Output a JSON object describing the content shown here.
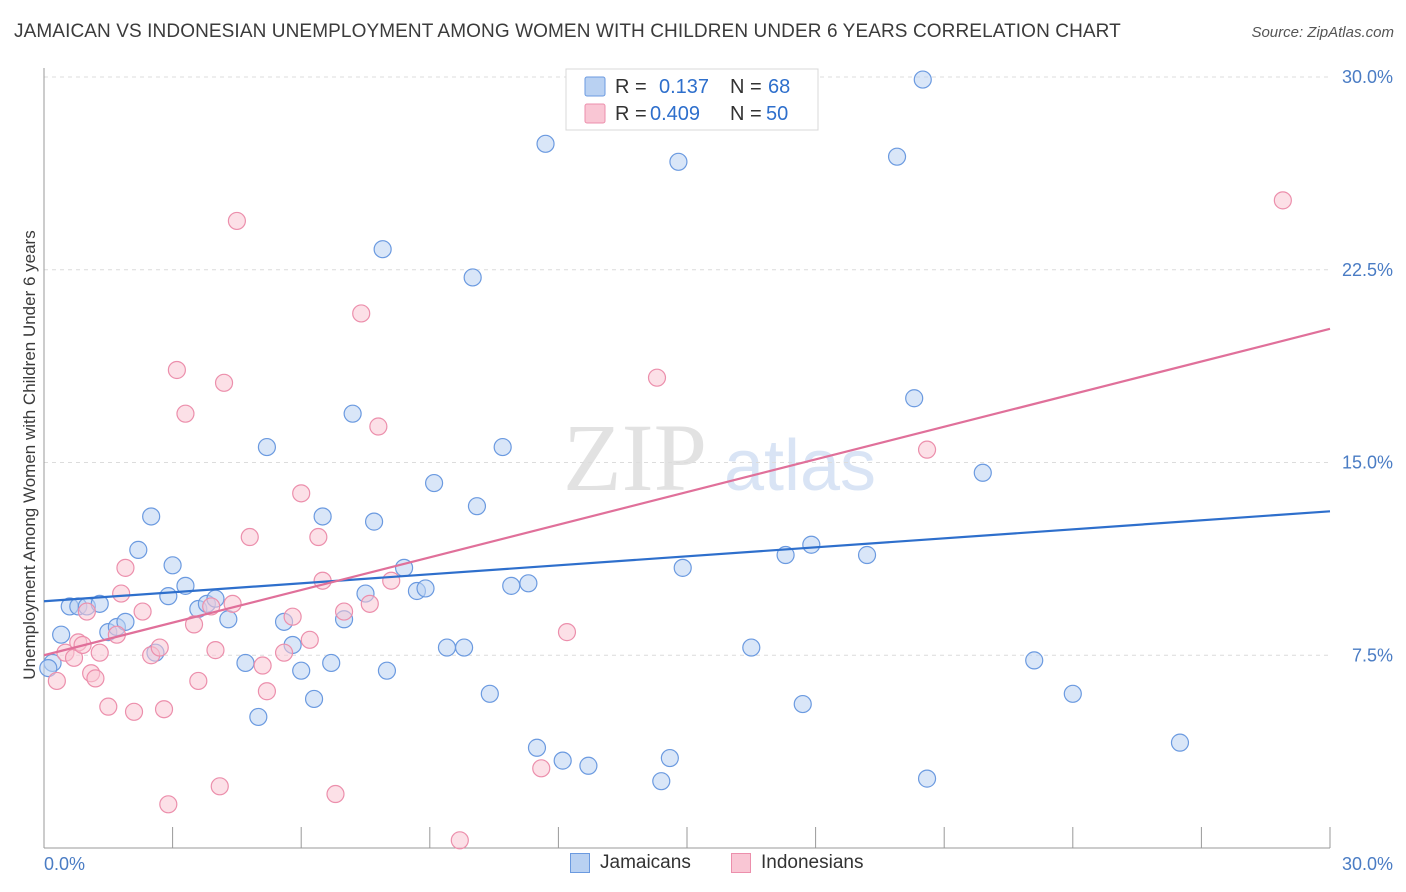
{
  "title": "JAMAICAN VS INDONESIAN UNEMPLOYMENT AMONG WOMEN WITH CHILDREN UNDER 6 YEARS CORRELATION CHART",
  "source": "Source: ZipAtlas.com",
  "watermark": {
    "zip": "ZIP",
    "atlas": "atlas"
  },
  "colors": {
    "jamaicans_fill": "#b9d1f2",
    "jamaicans_stroke": "#6b9ae0",
    "jamaicans_line": "#2e6fcc",
    "indonesians_fill": "#f9c6d4",
    "indonesians_stroke": "#ec8fac",
    "indonesians_line": "#e0709a",
    "tick_label": "#4a7cc4",
    "value_text": "#2e6fcc"
  },
  "legend": {
    "r_label": "R =",
    "n_label": "N =",
    "rows": [
      {
        "r": "0.137",
        "n": "68"
      },
      {
        "r": "0.409",
        "n": "50"
      }
    ]
  },
  "chart_data": {
    "type": "scatter",
    "title": "JAMAICAN VS INDONESIAN UNEMPLOYMENT AMONG WOMEN WITH CHILDREN UNDER 6 YEARS CORRELATION CHART",
    "xlabel": "",
    "ylabel": "Unemployment Among Women with Children Under 6 years",
    "xlim": [
      0,
      30
    ],
    "ylim": [
      0,
      30
    ],
    "x_tick_labels": [
      "0.0%",
      "30.0%"
    ],
    "y_ticks": [
      7.5,
      15.0,
      22.5,
      30.0
    ],
    "y_tick_labels": [
      "7.5%",
      "15.0%",
      "22.5%",
      "30.0%"
    ],
    "grid": "horizontal dashed",
    "legend_position": "top-center",
    "series": [
      {
        "name": "Jamaicans",
        "R": 0.137,
        "N": 68,
        "trend": {
          "x": [
            0,
            30
          ],
          "y": [
            9.6,
            13.1
          ]
        },
        "points": [
          [
            0.2,
            7.2
          ],
          [
            0.4,
            8.3
          ],
          [
            0.6,
            9.4
          ],
          [
            0.8,
            9.4
          ],
          [
            1.0,
            9.4
          ],
          [
            1.3,
            9.5
          ],
          [
            1.5,
            8.4
          ],
          [
            1.7,
            8.6
          ],
          [
            1.9,
            8.8
          ],
          [
            2.2,
            11.6
          ],
          [
            2.5,
            12.9
          ],
          [
            2.6,
            7.6
          ],
          [
            2.9,
            9.8
          ],
          [
            3.0,
            11.0
          ],
          [
            3.3,
            10.2
          ],
          [
            3.6,
            9.3
          ],
          [
            3.8,
            9.5
          ],
          [
            4.0,
            9.7
          ],
          [
            4.3,
            8.9
          ],
          [
            4.7,
            7.2
          ],
          [
            5.0,
            5.1
          ],
          [
            5.2,
            15.6
          ],
          [
            5.6,
            8.8
          ],
          [
            5.8,
            7.9
          ],
          [
            6.0,
            6.9
          ],
          [
            6.3,
            5.8
          ],
          [
            6.5,
            12.9
          ],
          [
            6.7,
            7.2
          ],
          [
            7.0,
            8.9
          ],
          [
            7.2,
            16.9
          ],
          [
            7.5,
            9.9
          ],
          [
            7.7,
            12.7
          ],
          [
            7.9,
            23.3
          ],
          [
            8.0,
            6.9
          ],
          [
            8.4,
            10.9
          ],
          [
            8.7,
            10.0
          ],
          [
            8.9,
            10.1
          ],
          [
            9.1,
            14.2
          ],
          [
            9.4,
            7.8
          ],
          [
            9.8,
            7.8
          ],
          [
            10.0,
            22.2
          ],
          [
            10.1,
            13.3
          ],
          [
            10.4,
            6.0
          ],
          [
            10.7,
            15.6
          ],
          [
            10.9,
            10.2
          ],
          [
            11.3,
            10.3
          ],
          [
            11.5,
            3.9
          ],
          [
            11.7,
            27.4
          ],
          [
            12.1,
            3.4
          ],
          [
            12.7,
            3.2
          ],
          [
            14.4,
            2.6
          ],
          [
            14.6,
            3.5
          ],
          [
            14.8,
            26.7
          ],
          [
            14.9,
            10.9
          ],
          [
            16.5,
            7.8
          ],
          [
            17.3,
            11.4
          ],
          [
            17.7,
            5.6
          ],
          [
            17.9,
            11.8
          ],
          [
            19.2,
            11.4
          ],
          [
            19.9,
            26.9
          ],
          [
            20.3,
            17.5
          ],
          [
            20.5,
            29.9
          ],
          [
            20.6,
            2.7
          ],
          [
            21.9,
            14.6
          ],
          [
            23.1,
            7.3
          ],
          [
            24.0,
            6.0
          ],
          [
            26.5,
            4.1
          ],
          [
            0.1,
            7.0
          ]
        ]
      },
      {
        "name": "Indonesians",
        "R": 0.409,
        "N": 50,
        "trend": {
          "x": [
            0,
            30
          ],
          "y": [
            7.5,
            20.2
          ]
        },
        "points": [
          [
            0.3,
            6.5
          ],
          [
            0.5,
            7.6
          ],
          [
            0.7,
            7.4
          ],
          [
            0.8,
            8.0
          ],
          [
            0.9,
            7.9
          ],
          [
            1.0,
            9.2
          ],
          [
            1.1,
            6.8
          ],
          [
            1.2,
            6.6
          ],
          [
            1.3,
            7.6
          ],
          [
            1.5,
            5.5
          ],
          [
            1.7,
            8.3
          ],
          [
            1.8,
            9.9
          ],
          [
            1.9,
            10.9
          ],
          [
            2.1,
            5.3
          ],
          [
            2.3,
            9.2
          ],
          [
            2.5,
            7.5
          ],
          [
            2.7,
            7.8
          ],
          [
            2.8,
            5.4
          ],
          [
            2.9,
            1.7
          ],
          [
            3.1,
            18.6
          ],
          [
            3.3,
            16.9
          ],
          [
            3.5,
            8.7
          ],
          [
            3.6,
            6.5
          ],
          [
            3.9,
            9.4
          ],
          [
            4.0,
            7.7
          ],
          [
            4.1,
            2.4
          ],
          [
            4.2,
            18.1
          ],
          [
            4.4,
            9.5
          ],
          [
            4.5,
            24.4
          ],
          [
            4.8,
            12.1
          ],
          [
            5.1,
            7.1
          ],
          [
            5.2,
            6.1
          ],
          [
            5.6,
            7.6
          ],
          [
            5.8,
            9.0
          ],
          [
            6.0,
            13.8
          ],
          [
            6.2,
            8.1
          ],
          [
            6.4,
            12.1
          ],
          [
            6.5,
            10.4
          ],
          [
            6.8,
            2.1
          ],
          [
            7.0,
            9.2
          ],
          [
            7.4,
            20.8
          ],
          [
            7.6,
            9.5
          ],
          [
            7.8,
            16.4
          ],
          [
            8.1,
            10.4
          ],
          [
            9.7,
            0.3
          ],
          [
            11.6,
            3.1
          ],
          [
            12.2,
            8.4
          ],
          [
            14.3,
            18.3
          ],
          [
            20.6,
            15.5
          ],
          [
            28.9,
            25.2
          ]
        ]
      }
    ]
  },
  "bottom_legend": [
    "Jamaicans",
    "Indonesians"
  ]
}
